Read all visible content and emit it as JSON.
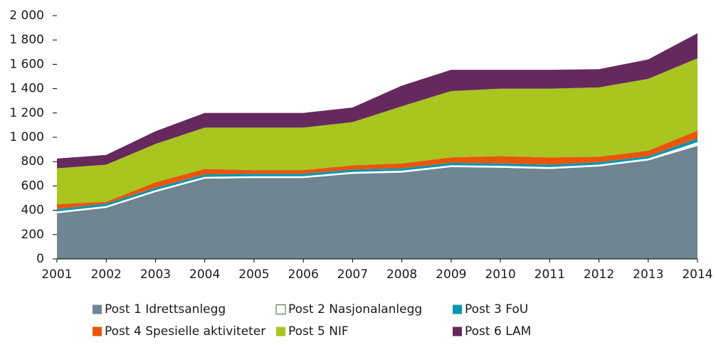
{
  "chart_data": {
    "type": "area",
    "stacked": true,
    "x": [
      2001,
      2002,
      2003,
      2004,
      2005,
      2006,
      2007,
      2008,
      2009,
      2010,
      2011,
      2012,
      2013,
      2014
    ],
    "xlim": [
      2001,
      2014
    ],
    "xticks": [
      2001,
      2002,
      2003,
      2004,
      2005,
      2006,
      2007,
      2008,
      2009,
      2010,
      2011,
      2012,
      2013,
      2014
    ],
    "ylim": [
      0,
      2000
    ],
    "yticks": [
      0,
      200,
      400,
      600,
      800,
      {
        "value": 1000,
        "label": "1 000"
      },
      {
        "value": 1200,
        "label": "1 200"
      },
      {
        "value": 1400,
        "label": "1 400"
      },
      {
        "value": 1600,
        "label": "1 600"
      },
      {
        "value": 1800,
        "label": "1 800"
      },
      {
        "value": 2000,
        "label": "2 000"
      }
    ],
    "series": [
      {
        "name": "Post 1 Idrettsanlegg",
        "color": "#6f8591",
        "values": [
          375,
          420,
          550,
          660,
          665,
          665,
          700,
          710,
          755,
          750,
          740,
          760,
          810,
          930
        ]
      },
      {
        "name": "Post 2 Nasjonalanlegg",
        "color": "#ffffff",
        "values": [
          15,
          15,
          15,
          15,
          15,
          15,
          15,
          15,
          15,
          15,
          15,
          15,
          15,
          30
        ]
      },
      {
        "name": "Post 3 FoU",
        "color": "#0a96b0",
        "values": [
          20,
          20,
          20,
          20,
          20,
          20,
          20,
          20,
          20,
          20,
          20,
          20,
          20,
          30
        ]
      },
      {
        "name": "Post 4 Spesielle aktiviteter",
        "color": "#e8560e",
        "values": [
          40,
          15,
          45,
          45,
          30,
          30,
          35,
          40,
          45,
          60,
          60,
          45,
          45,
          65
        ]
      },
      {
        "name": "Post 5 NIF",
        "color": "#a8c520",
        "values": [
          295,
          305,
          315,
          340,
          350,
          350,
          355,
          470,
          545,
          555,
          565,
          570,
          590,
          595
        ]
      },
      {
        "name": "Post 6 LAM",
        "color": "#66295e",
        "values": [
          80,
          80,
          105,
          120,
          120,
          120,
          120,
          170,
          175,
          155,
          155,
          150,
          160,
          205
        ]
      }
    ]
  }
}
